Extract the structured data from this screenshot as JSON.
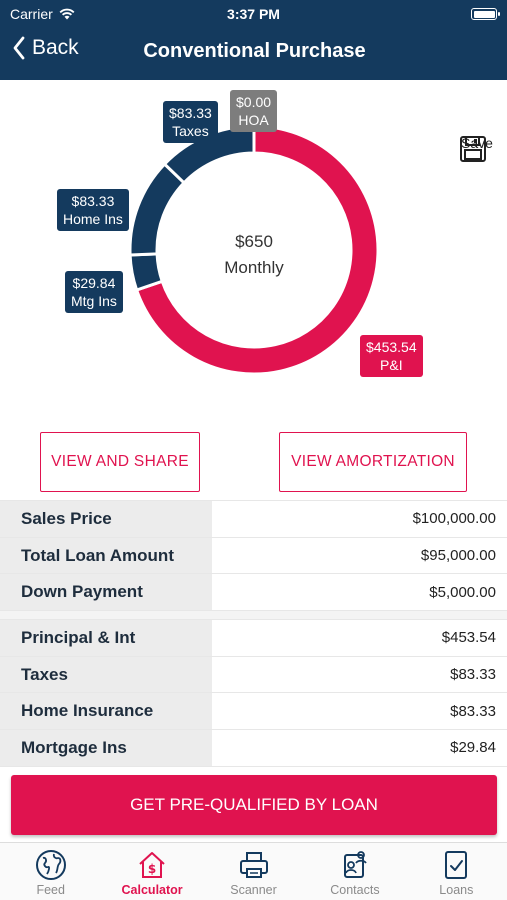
{
  "status": {
    "carrier": "Carrier",
    "time": "3:37 PM"
  },
  "nav": {
    "back": "Back",
    "title": "Conventional Purchase"
  },
  "chart_data": {
    "type": "pie",
    "center_value": "$650",
    "center_label": "Monthly",
    "slices": [
      {
        "label": "P&I",
        "display": "$453.54",
        "value": 453.54,
        "color": "#e0134f"
      },
      {
        "label": "Mtg Ins",
        "display": "$29.84",
        "value": 29.84,
        "color": "#143a5e"
      },
      {
        "label": "Home Ins",
        "display": "$83.33",
        "value": 83.33,
        "color": "#143a5e"
      },
      {
        "label": "Taxes",
        "display": "$83.33",
        "value": 83.33,
        "color": "#143a5e"
      },
      {
        "label": "HOA",
        "display": "$0.00",
        "value": 0,
        "color": "#7d7d7d"
      }
    ]
  },
  "save_label": "Save",
  "buttons": {
    "view_share": "VIEW AND SHARE",
    "view_amort": "VIEW AMORTIZATION"
  },
  "loan_rows": [
    {
      "label": "Sales Price",
      "value": "$100,000.00"
    },
    {
      "label": "Total Loan Amount",
      "value": "$95,000.00"
    },
    {
      "label": "Down Payment",
      "value": "$5,000.00"
    }
  ],
  "payment_rows": [
    {
      "label": "Principal & Int",
      "value": "$453.54"
    },
    {
      "label": "Taxes",
      "value": "$83.33"
    },
    {
      "label": "Home Insurance",
      "value": "$83.33"
    },
    {
      "label": "Mortgage Ins",
      "value": "$29.84"
    }
  ],
  "cta": "GET PRE-QUALIFIED BY LOAN",
  "tabs": [
    {
      "label": "Feed",
      "icon": "globe-icon",
      "active": false
    },
    {
      "label": "Calculator",
      "icon": "calculator-house-icon",
      "active": true
    },
    {
      "label": "Scanner",
      "icon": "printer-icon",
      "active": false
    },
    {
      "label": "Contacts",
      "icon": "contacts-icon",
      "active": false
    },
    {
      "label": "Loans",
      "icon": "clipboard-check-icon",
      "active": false
    }
  ]
}
